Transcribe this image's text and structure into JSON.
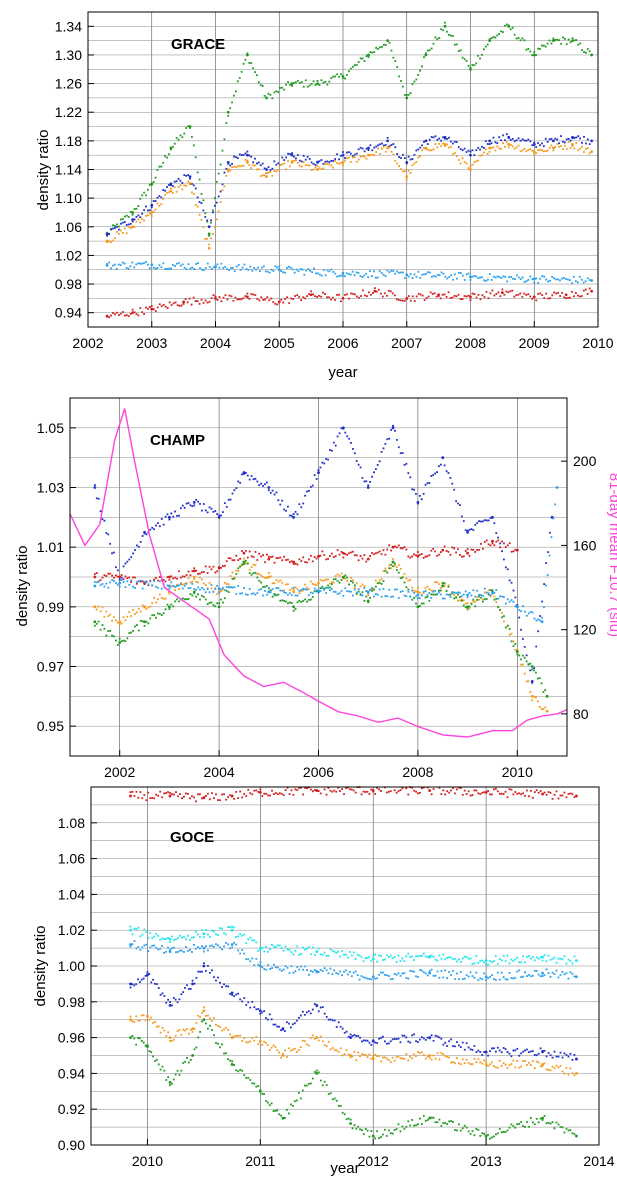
{
  "panels": [
    {
      "name": "GRACE",
      "label": "GRACE",
      "xlabel": "year",
      "ylabel": "density ratio",
      "xlim": [
        2002,
        2010
      ],
      "ylim": [
        0.92,
        1.36
      ],
      "xticks": [
        2002,
        2003,
        2004,
        2005,
        2006,
        2007,
        2008,
        2009,
        2010
      ],
      "xtick_labels": [
        "2002",
        "2003",
        "2004",
        "2005",
        "2006",
        "2007",
        "2008",
        "2009",
        "2010"
      ],
      "yticks": [
        0.94,
        0.98,
        1.02,
        1.06,
        1.1,
        1.14,
        1.18,
        1.22,
        1.26,
        1.3,
        1.34
      ],
      "ytick_labels": [
        "0.94",
        "0.98",
        "1.02",
        "1.06",
        "1.10",
        "1.14",
        "1.18",
        "1.22",
        "1.26",
        "1.30",
        "1.34"
      ],
      "ygrid_step": 0.02
    },
    {
      "name": "CHAMP",
      "label": "CHAMP",
      "xlabel": "year",
      "ylabel": "density ratio",
      "y2label": "81-day mean F10.7 (sfu)",
      "xlim": [
        2001,
        2011
      ],
      "ylim": [
        0.94,
        1.06
      ],
      "y2lim": [
        60,
        230
      ],
      "xticks": [
        2002,
        2004,
        2006,
        2008,
        2010
      ],
      "xtick_labels": [
        "2002",
        "2004",
        "2006",
        "2008",
        "2010"
      ],
      "yticks": [
        0.95,
        0.97,
        0.99,
        1.01,
        1.03,
        1.05
      ],
      "ytick_labels": [
        "0.95",
        "0.97",
        "0.99",
        "1.01",
        "1.03",
        "1.05"
      ],
      "y2ticks": [
        80,
        120,
        160,
        200
      ],
      "y2tick_labels": [
        "80",
        "120",
        "160",
        "200"
      ],
      "ygrid_step": 0.01
    },
    {
      "name": "GOCE",
      "label": "GOCE",
      "xlabel": "year",
      "ylabel": "density ratio",
      "xlim": [
        2009.5,
        2014
      ],
      "ylim": [
        0.9,
        1.1
      ],
      "xticks": [
        2010,
        2011,
        2012,
        2013,
        2014
      ],
      "xtick_labels": [
        "2010",
        "2011",
        "2012",
        "2013",
        "2014"
      ],
      "yticks": [
        0.9,
        0.92,
        0.94,
        0.96,
        0.98,
        1.0,
        1.02,
        1.04,
        1.06,
        1.08
      ],
      "ytick_labels": [
        "0.90",
        "0.92",
        "0.94",
        "0.96",
        "0.98",
        "1.00",
        "1.02",
        "1.04",
        "1.06",
        "1.08"
      ],
      "ygrid_step": 0.01
    }
  ],
  "chart_data": [
    {
      "type": "scatter",
      "label": "GRACE",
      "xlabel": "year",
      "ylabel": "density ratio",
      "xlim": [
        2002,
        2010
      ],
      "ylim": [
        0.92,
        1.36
      ],
      "grid": true,
      "series": [
        {
          "color": "#1e9a1e",
          "x": [
            2002.3,
            2002.7,
            2003.0,
            2003.3,
            2003.6,
            2003.9,
            2004.2,
            2004.5,
            2004.8,
            2005.2,
            2005.6,
            2006.0,
            2006.4,
            2006.7,
            2007.0,
            2007.3,
            2007.6,
            2008.0,
            2008.3,
            2008.6,
            2009.0,
            2009.3,
            2009.6,
            2009.9
          ],
          "y": [
            1.05,
            1.08,
            1.12,
            1.17,
            1.2,
            1.05,
            1.22,
            1.3,
            1.24,
            1.26,
            1.26,
            1.27,
            1.3,
            1.32,
            1.24,
            1.3,
            1.34,
            1.28,
            1.32,
            1.34,
            1.3,
            1.32,
            1.32,
            1.3
          ]
        },
        {
          "color": "#1f2fc8",
          "x": [
            2002.3,
            2002.7,
            2003.0,
            2003.3,
            2003.6,
            2003.9,
            2004.2,
            2004.5,
            2004.8,
            2005.2,
            2005.6,
            2006.0,
            2006.4,
            2006.7,
            2007.0,
            2007.3,
            2007.6,
            2008.0,
            2008.3,
            2008.6,
            2009.0,
            2009.3,
            2009.6,
            2009.9
          ],
          "y": [
            1.05,
            1.07,
            1.09,
            1.12,
            1.13,
            1.06,
            1.15,
            1.16,
            1.14,
            1.16,
            1.15,
            1.16,
            1.17,
            1.18,
            1.15,
            1.18,
            1.185,
            1.16,
            1.18,
            1.185,
            1.175,
            1.18,
            1.185,
            1.18
          ]
        },
        {
          "color": "#f59a1e",
          "x": [
            2002.3,
            2002.7,
            2003.0,
            2003.3,
            2003.6,
            2003.9,
            2004.2,
            2004.5,
            2004.8,
            2005.2,
            2005.6,
            2006.0,
            2006.4,
            2006.7,
            2007.0,
            2007.3,
            2007.6,
            2008.0,
            2008.3,
            2008.6,
            2009.0,
            2009.3,
            2009.6,
            2009.9
          ],
          "y": [
            1.04,
            1.06,
            1.08,
            1.11,
            1.12,
            1.03,
            1.14,
            1.15,
            1.13,
            1.15,
            1.14,
            1.15,
            1.16,
            1.17,
            1.13,
            1.17,
            1.175,
            1.14,
            1.17,
            1.175,
            1.165,
            1.17,
            1.175,
            1.165
          ]
        },
        {
          "color": "#2aa0ee",
          "x": [
            2002.3,
            2003.0,
            2004.0,
            2005.0,
            2006.0,
            2007.0,
            2008.0,
            2009.0,
            2009.9
          ],
          "y": [
            1.006,
            1.007,
            1.004,
            1.0,
            0.995,
            0.993,
            0.99,
            0.987,
            0.985
          ]
        },
        {
          "color": "#d41e1e",
          "x": [
            2002.3,
            2002.7,
            2003.0,
            2003.5,
            2004.0,
            2004.5,
            2005.0,
            2005.5,
            2006.0,
            2006.5,
            2007.0,
            2007.5,
            2008.0,
            2008.5,
            2009.0,
            2009.5,
            2009.9
          ],
          "y": [
            0.935,
            0.94,
            0.945,
            0.955,
            0.96,
            0.962,
            0.955,
            0.965,
            0.96,
            0.97,
            0.96,
            0.965,
            0.962,
            0.968,
            0.962,
            0.965,
            0.97
          ]
        }
      ]
    },
    {
      "type": "scatter",
      "label": "CHAMP",
      "xlabel": "year",
      "ylabel": "density ratio",
      "y2label": "81-day mean F10.7 (sfu)",
      "xlim": [
        2001,
        2011
      ],
      "ylim": [
        0.94,
        1.06
      ],
      "y2lim": [
        60,
        230
      ],
      "grid": true,
      "series": [
        {
          "color": "#1f2fc8",
          "x": [
            2001.5,
            2002.0,
            2002.5,
            2003.0,
            2003.5,
            2004.0,
            2004.5,
            2005.0,
            2005.5,
            2006.0,
            2006.5,
            2007.0,
            2007.5,
            2008.0,
            2008.5,
            2009.0,
            2009.5,
            2010.0,
            2010.3,
            2010.7
          ],
          "y": [
            1.03,
            1.0,
            1.015,
            1.02,
            1.025,
            1.02,
            1.035,
            1.03,
            1.02,
            1.035,
            1.05,
            1.03,
            1.05,
            1.025,
            1.04,
            1.015,
            1.02,
            0.99,
            0.965,
            1.02
          ]
        },
        {
          "color": "#f59a1e",
          "x": [
            2001.5,
            2002.0,
            2002.5,
            2003.0,
            2003.5,
            2004.0,
            2004.5,
            2005.0,
            2005.5,
            2006.0,
            2006.5,
            2007.0,
            2007.5,
            2008.0,
            2008.5,
            2009.0,
            2009.5,
            2010.0,
            2010.3,
            2010.6
          ],
          "y": [
            0.99,
            0.985,
            0.99,
            0.995,
            1.0,
            0.995,
            1.005,
            1.0,
            0.995,
            0.998,
            1.0,
            0.995,
            1.005,
            0.995,
            0.998,
            0.99,
            0.995,
            0.975,
            0.96,
            0.955
          ]
        },
        {
          "color": "#1e9a1e",
          "x": [
            2001.5,
            2002.0,
            2002.5,
            2003.0,
            2003.5,
            2004.0,
            2004.5,
            2005.0,
            2005.5,
            2006.0,
            2006.5,
            2007.0,
            2007.5,
            2008.0,
            2008.5,
            2009.0,
            2009.5,
            2010.0,
            2010.3,
            2010.6
          ],
          "y": [
            0.985,
            0.978,
            0.985,
            0.99,
            0.995,
            0.99,
            1.005,
            0.995,
            0.99,
            0.995,
            1.0,
            0.992,
            1.005,
            0.99,
            0.997,
            0.99,
            0.995,
            0.975,
            0.97,
            0.96
          ]
        },
        {
          "color": "#d41e1e",
          "x": [
            2001.5,
            2002.0,
            2002.5,
            2003.0,
            2003.5,
            2004.0,
            2004.5,
            2005.0,
            2005.5,
            2006.0,
            2006.5,
            2007.0,
            2007.5,
            2008.0,
            2008.5,
            2009.0,
            2009.5,
            2010.0
          ],
          "y": [
            1.0,
            1.0,
            0.998,
            1.0,
            1.002,
            1.003,
            1.008,
            1.006,
            1.005,
            1.007,
            1.008,
            1.006,
            1.01,
            1.007,
            1.009,
            1.008,
            1.012,
            1.009
          ]
        },
        {
          "color": "#2aa0ee",
          "x": [
            2001.5,
            2002.0,
            2003.0,
            2004.0,
            2005.0,
            2006.0,
            2007.0,
            2008.0,
            2009.0,
            2009.5,
            2010.0,
            2010.5,
            2010.8
          ],
          "y": [
            0.997,
            0.998,
            0.997,
            0.996,
            0.995,
            0.995,
            0.995,
            0.994,
            0.994,
            0.995,
            0.99,
            0.985,
            1.03
          ]
        },
        {
          "color": "#ff44dd",
          "axis": "y2",
          "x": [
            2001.0,
            2001.3,
            2001.6,
            2001.9,
            2002.1,
            2002.3,
            2002.6,
            2002.9,
            2003.2,
            2003.5,
            2003.8,
            2004.1,
            2004.5,
            2004.9,
            2005.3,
            2005.7,
            2006.0,
            2006.4,
            2006.8,
            2007.2,
            2007.6,
            2008.0,
            2008.5,
            2009.0,
            2009.5,
            2009.9,
            2010.2,
            2010.5,
            2010.8,
            2011.0
          ],
          "y": [
            175,
            160,
            170,
            210,
            225,
            200,
            165,
            140,
            135,
            130,
            125,
            108,
            98,
            93,
            95,
            90,
            86,
            81,
            79,
            76,
            78,
            74,
            70,
            69,
            72,
            72,
            77,
            79,
            80,
            82
          ]
        }
      ]
    },
    {
      "type": "scatter",
      "label": "GOCE",
      "xlabel": "year",
      "ylabel": "density ratio",
      "xlim": [
        2009.5,
        2014
      ],
      "ylim": [
        0.9,
        1.1
      ],
      "grid": true,
      "series": [
        {
          "color": "#d41e1e",
          "x": [
            2009.85,
            2010.2,
            2010.5,
            2010.75,
            2011.0,
            2011.5,
            2012.0,
            2012.5,
            2013.0,
            2013.5,
            2013.8
          ],
          "y": [
            1.095,
            1.095,
            1.094,
            1.095,
            1.097,
            1.098,
            1.098,
            1.098,
            1.097,
            1.096,
            1.095
          ]
        },
        {
          "color": "#1ee6ee",
          "x": [
            2009.85,
            2010.2,
            2010.5,
            2010.75,
            2011.0,
            2011.5,
            2012.0,
            2012.5,
            2013.0,
            2013.5,
            2013.8
          ],
          "y": [
            1.02,
            1.015,
            1.018,
            1.02,
            1.01,
            1.008,
            1.004,
            1.005,
            1.003,
            1.005,
            1.003
          ]
        },
        {
          "color": "#2aa0ee",
          "x": [
            2009.85,
            2010.2,
            2010.5,
            2010.75,
            2011.0,
            2011.5,
            2012.0,
            2012.5,
            2013.0,
            2013.5,
            2013.8
          ],
          "y": [
            1.012,
            1.008,
            1.01,
            1.012,
            1.0,
            0.997,
            0.994,
            0.996,
            0.994,
            0.996,
            0.994
          ]
        },
        {
          "color": "#1f2fc8",
          "x": [
            2009.85,
            2010.0,
            2010.2,
            2010.4,
            2010.5,
            2010.75,
            2011.0,
            2011.2,
            2011.5,
            2011.8,
            2012.0,
            2012.5,
            2013.0,
            2013.5,
            2013.8
          ],
          "y": [
            0.99,
            0.995,
            0.978,
            0.99,
            1.0,
            0.985,
            0.975,
            0.965,
            0.978,
            0.96,
            0.958,
            0.96,
            0.952,
            0.952,
            0.948
          ]
        },
        {
          "color": "#f59a1e",
          "x": [
            2009.85,
            2010.0,
            2010.2,
            2010.4,
            2010.5,
            2010.75,
            2011.0,
            2011.2,
            2011.5,
            2011.8,
            2012.0,
            2012.5,
            2013.0,
            2013.5,
            2013.8
          ],
          "y": [
            0.97,
            0.972,
            0.96,
            0.965,
            0.975,
            0.96,
            0.958,
            0.95,
            0.96,
            0.95,
            0.948,
            0.95,
            0.945,
            0.945,
            0.94
          ]
        },
        {
          "color": "#1e9a1e",
          "x": [
            2009.85,
            2010.0,
            2010.2,
            2010.4,
            2010.5,
            2010.75,
            2011.0,
            2011.2,
            2011.5,
            2011.8,
            2012.0,
            2012.5,
            2013.0,
            2013.5,
            2013.8
          ],
          "y": [
            0.96,
            0.955,
            0.935,
            0.95,
            0.97,
            0.945,
            0.93,
            0.915,
            0.94,
            0.912,
            0.905,
            0.915,
            0.905,
            0.915,
            0.905
          ]
        }
      ]
    }
  ]
}
